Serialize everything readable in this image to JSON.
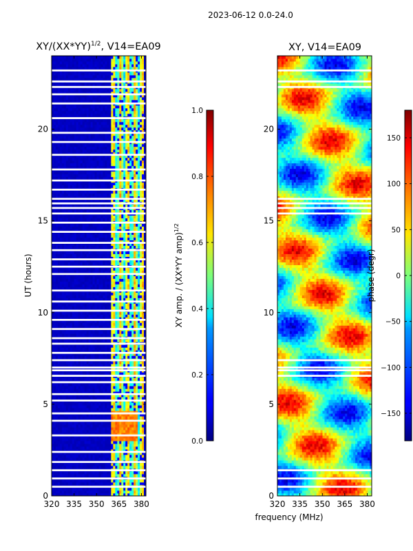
{
  "figure": {
    "suptitle": "2023-06-12 0.0-24.0"
  },
  "chart_data": [
    {
      "type": "heatmap",
      "title": "XY/(XX*YY)",
      "title_superscript": "1/2",
      "title_suffix": ", V14=EA09",
      "xlabel": "",
      "ylabel": "UT (hours)",
      "xlim": [
        320,
        383
      ],
      "ylim": [
        0,
        24
      ],
      "xticks": [
        320,
        335,
        350,
        365,
        380
      ],
      "xtick_labels": [
        "320",
        "335",
        "350",
        "365",
        "380"
      ],
      "yticks": [
        0,
        5,
        10,
        15,
        20
      ],
      "ytick_labels": [
        "0",
        "5",
        "10",
        "15",
        "20"
      ],
      "colorbar": {
        "label": "XY amp. / (XX*YY amp)",
        "label_superscript": "1/2",
        "range": [
          0.0,
          1.0
        ],
        "ticks": [
          0.0,
          0.2,
          0.4,
          0.6,
          0.8,
          1.0
        ],
        "tick_labels": [
          "0.0",
          "0.2",
          "0.4",
          "0.6",
          "0.8",
          "1.0"
        ]
      },
      "colormap": "jet",
      "data_description": {
        "background_value": 0.05,
        "active_frequency_band_MHz": [
          360,
          382
        ],
        "active_band_value_range": [
          0.3,
          0.8
        ],
        "hot_spot": {
          "freq_MHz": [
            360,
            378
          ],
          "ut_hours": [
            3.0,
            4.6
          ],
          "value": 0.75
        }
      },
      "flagged_ut_hours": [
        0.5,
        0.95,
        1.4,
        1.85,
        2.4,
        3.3,
        4.1,
        4.5,
        5.2,
        5.55,
        6.2,
        6.55,
        6.85,
        7.0,
        7.4,
        7.8,
        8.3,
        8.6,
        9.1,
        9.6,
        10.1,
        10.6,
        11.2,
        12.1,
        12.5,
        12.9,
        13.4,
        13.8,
        14.4,
        14.9,
        15.4,
        15.7,
        15.95,
        16.2,
        16.7,
        17.2,
        17.8,
        18.6,
        19.3,
        19.8,
        20.6,
        21.4,
        21.9,
        22.3,
        22.6,
        23.2
      ]
    },
    {
      "type": "heatmap",
      "title": "XY, V14=EA09",
      "xlabel": "frequency (MHz)",
      "ylabel": "",
      "xlim": [
        320,
        383
      ],
      "ylim": [
        0,
        24
      ],
      "xticks": [
        320,
        335,
        350,
        365,
        380
      ],
      "xtick_labels": [
        "320",
        "335",
        "350",
        "365",
        "380"
      ],
      "yticks": [
        0,
        5,
        10,
        15,
        20
      ],
      "ytick_labels": [
        "0",
        "5",
        "10",
        "15",
        "20"
      ],
      "colorbar": {
        "label": "phase (degr)",
        "range": [
          -180,
          180
        ],
        "ticks": [
          -150,
          -100,
          -50,
          0,
          50,
          100,
          150
        ],
        "tick_labels": [
          "−150",
          "−100",
          "−50",
          "0",
          "50",
          "100",
          "150"
        ]
      },
      "colormap": "jet",
      "data_description": {
        "phase_range_deg": [
          -180,
          180
        ],
        "pattern": "wrapped phase varying smoothly with frequency and time"
      },
      "flagged_ut_hours": [
        0.5,
        0.95,
        1.4,
        6.55,
        6.85,
        7.0,
        7.4,
        15.4,
        15.7,
        15.95,
        16.2,
        22.3,
        22.6,
        23.2
      ]
    }
  ]
}
